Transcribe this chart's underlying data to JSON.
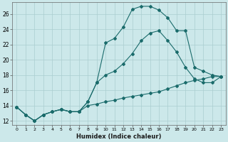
{
  "xlabel": "Humidex (Indice chaleur)",
  "bg_color": "#cce8ea",
  "grid_color": "#aacdd0",
  "line_color": "#1a6b6b",
  "xlim": [
    -0.5,
    23.5
  ],
  "ylim": [
    11.5,
    27.5
  ],
  "xticks": [
    0,
    1,
    2,
    3,
    4,
    5,
    6,
    7,
    8,
    9,
    10,
    11,
    12,
    13,
    14,
    15,
    16,
    17,
    18,
    19,
    20,
    21,
    22,
    23
  ],
  "yticks": [
    12,
    14,
    16,
    18,
    20,
    22,
    24,
    26
  ],
  "line1_x": [
    0,
    1,
    2,
    3,
    4,
    5,
    6,
    7,
    8,
    9,
    10,
    11,
    12,
    13,
    14,
    15,
    16,
    17,
    18,
    19,
    20,
    21,
    22,
    23
  ],
  "line1_y": [
    13.8,
    12.8,
    12.0,
    12.8,
    13.2,
    13.5,
    13.2,
    13.2,
    14.5,
    17.0,
    22.2,
    22.8,
    24.3,
    26.6,
    27.0,
    27.0,
    26.5,
    25.5,
    23.8,
    23.8,
    19.0,
    18.5,
    18.0,
    17.8
  ],
  "line2_x": [
    0,
    1,
    2,
    3,
    4,
    5,
    6,
    7,
    8,
    9,
    10,
    11,
    12,
    13,
    14,
    15,
    16,
    17,
    18,
    19,
    20,
    21,
    22,
    23
  ],
  "line2_y": [
    13.8,
    12.8,
    12.0,
    12.8,
    13.2,
    13.5,
    13.2,
    13.2,
    14.5,
    17.0,
    18.0,
    18.5,
    19.5,
    20.8,
    22.5,
    23.5,
    23.8,
    22.5,
    21.0,
    19.0,
    17.5,
    17.0,
    17.0,
    17.8
  ],
  "line3_x": [
    0,
    1,
    2,
    3,
    4,
    5,
    6,
    7,
    8,
    9,
    10,
    11,
    12,
    13,
    14,
    15,
    16,
    17,
    18,
    19,
    20,
    21,
    22,
    23
  ],
  "line3_y": [
    13.8,
    12.8,
    12.0,
    12.8,
    13.2,
    13.5,
    13.2,
    13.2,
    14.0,
    14.2,
    14.5,
    14.7,
    15.0,
    15.2,
    15.4,
    15.6,
    15.8,
    16.2,
    16.6,
    17.0,
    17.3,
    17.5,
    17.8,
    17.8
  ],
  "markersize": 2.0,
  "linewidth": 0.8
}
